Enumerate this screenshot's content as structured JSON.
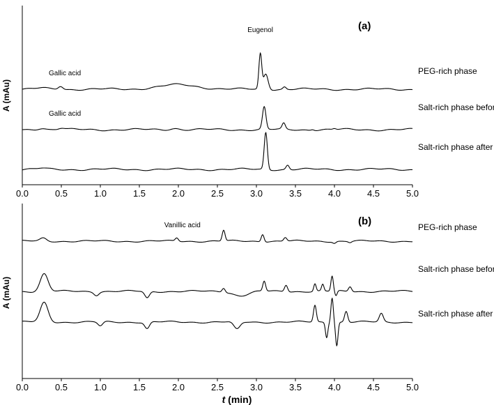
{
  "chart_data": [
    {
      "panel": "(a)",
      "type": "line",
      "xlabel": "",
      "ylabel": "A (mAu)",
      "xlim": [
        0.0,
        5.0
      ],
      "xticks": [
        "0.0",
        "0.5",
        "1.0",
        "1.5",
        "2.0",
        "2.5",
        "3.0",
        "3.5",
        "4.0",
        "4.5",
        "5.0"
      ],
      "series": [
        {
          "name": "PEG-rich phase",
          "baseline": 3.2,
          "features": [
            {
              "t": 0.25,
              "h": 0.12,
              "w": 0.06
            },
            {
              "t": 0.49,
              "h": 0.35,
              "w": 0.03
            },
            {
              "t": 2.0,
              "h": 0.45,
              "w": 0.25
            },
            {
              "t": 3.05,
              "h": 3.6,
              "w": 0.018
            },
            {
              "t": 3.12,
              "h": 1.6,
              "w": 0.03
            },
            {
              "t": 3.36,
              "h": 0.25,
              "w": 0.02
            }
          ]
        },
        {
          "name": "Salt-rich phase before ATPF",
          "baseline": 1.8,
          "features": [
            {
              "t": 0.25,
              "h": 0.2,
              "w": 0.05
            },
            {
              "t": 0.5,
              "h": 0.15,
              "w": 0.04
            },
            {
              "t": 1.95,
              "h": 0.15,
              "w": 0.06
            },
            {
              "t": 3.1,
              "h": 2.3,
              "w": 0.022
            },
            {
              "t": 3.35,
              "h": 0.6,
              "w": 0.02
            },
            {
              "t": 3.72,
              "h": 0.1,
              "w": 0.02
            },
            {
              "t": 4.0,
              "h": 0.1,
              "w": 0.02
            }
          ]
        },
        {
          "name": "Salt-rich phase after ATPF",
          "baseline": 0.4,
          "features": [
            {
              "t": 0.25,
              "h": 0.1,
              "w": 0.05
            },
            {
              "t": 3.12,
              "h": 3.8,
              "w": 0.02
            },
            {
              "t": 3.4,
              "h": 0.45,
              "w": 0.02
            }
          ]
        }
      ],
      "annotations": [
        {
          "text": "Gallic acid",
          "t": 0.5,
          "trace": 0
        },
        {
          "text": "Eugenol",
          "t": 3.05,
          "trace": 0
        },
        {
          "text": "Gallic acid",
          "t": 0.5,
          "trace": 1
        }
      ]
    },
    {
      "panel": "(b)",
      "type": "line",
      "xlabel": "t (min)",
      "ylabel": "A (mAu)",
      "xlim": [
        0.0,
        5.0
      ],
      "xticks": [
        "0.0",
        "0.5",
        "1.0",
        "1.5",
        "2.0",
        "2.5",
        "3.0",
        "3.5",
        "4.0",
        "4.5",
        "5.0"
      ],
      "series": [
        {
          "name": "PEG-rich phase",
          "baseline": 6.2,
          "features": [
            {
              "t": 0.27,
              "h": 0.35,
              "w": 0.04
            },
            {
              "t": 1.98,
              "h": 0.4,
              "w": 0.02
            },
            {
              "t": 2.58,
              "h": 1.3,
              "w": 0.018
            },
            {
              "t": 3.08,
              "h": 0.9,
              "w": 0.018
            },
            {
              "t": 3.37,
              "h": 0.45,
              "w": 0.02
            },
            {
              "t": 4.0,
              "h": -0.2,
              "w": 0.02
            },
            {
              "t": 4.2,
              "h": -0.15,
              "w": 0.02
            }
          ]
        },
        {
          "name": "Salt-rich phase before ATPF",
          "baseline": 3.3,
          "features": [
            {
              "t": 0.28,
              "h": 2.1,
              "w": 0.05
            },
            {
              "t": 0.95,
              "h": -0.4,
              "w": 0.03
            },
            {
              "t": 1.6,
              "h": -0.8,
              "w": 0.03
            },
            {
              "t": 2.58,
              "h": 0.5,
              "w": 0.02
            },
            {
              "t": 2.8,
              "h": -0.5,
              "w": 0.1
            },
            {
              "t": 3.1,
              "h": 1.2,
              "w": 0.018
            },
            {
              "t": 3.38,
              "h": 0.8,
              "w": 0.02
            },
            {
              "t": 3.75,
              "h": 0.9,
              "w": 0.015
            },
            {
              "t": 3.85,
              "h": 0.8,
              "w": 0.015
            },
            {
              "t": 3.97,
              "h": 1.8,
              "w": 0.015
            },
            {
              "t": 4.02,
              "h": -0.6,
              "w": 0.015
            },
            {
              "t": 4.2,
              "h": 0.6,
              "w": 0.02
            }
          ]
        },
        {
          "name": "Salt-rich phase after ATPF",
          "baseline": 1.6,
          "features": [
            {
              "t": 0.28,
              "h": 2.3,
              "w": 0.05
            },
            {
              "t": 1.0,
              "h": -0.5,
              "w": 0.03
            },
            {
              "t": 1.6,
              "h": -0.8,
              "w": 0.03
            },
            {
              "t": 2.75,
              "h": -0.9,
              "w": 0.04
            },
            {
              "t": 3.75,
              "h": 2.0,
              "w": 0.018
            },
            {
              "t": 3.9,
              "h": -1.8,
              "w": 0.015
            },
            {
              "t": 3.97,
              "h": 3.0,
              "w": 0.015
            },
            {
              "t": 4.03,
              "h": -2.8,
              "w": 0.015
            },
            {
              "t": 4.15,
              "h": 1.3,
              "w": 0.02
            },
            {
              "t": 4.6,
              "h": 1.0,
              "w": 0.025
            }
          ]
        }
      ],
      "annotations": [
        {
          "text": "Vanillic acid",
          "t": 1.98,
          "trace": 0
        }
      ]
    }
  ]
}
